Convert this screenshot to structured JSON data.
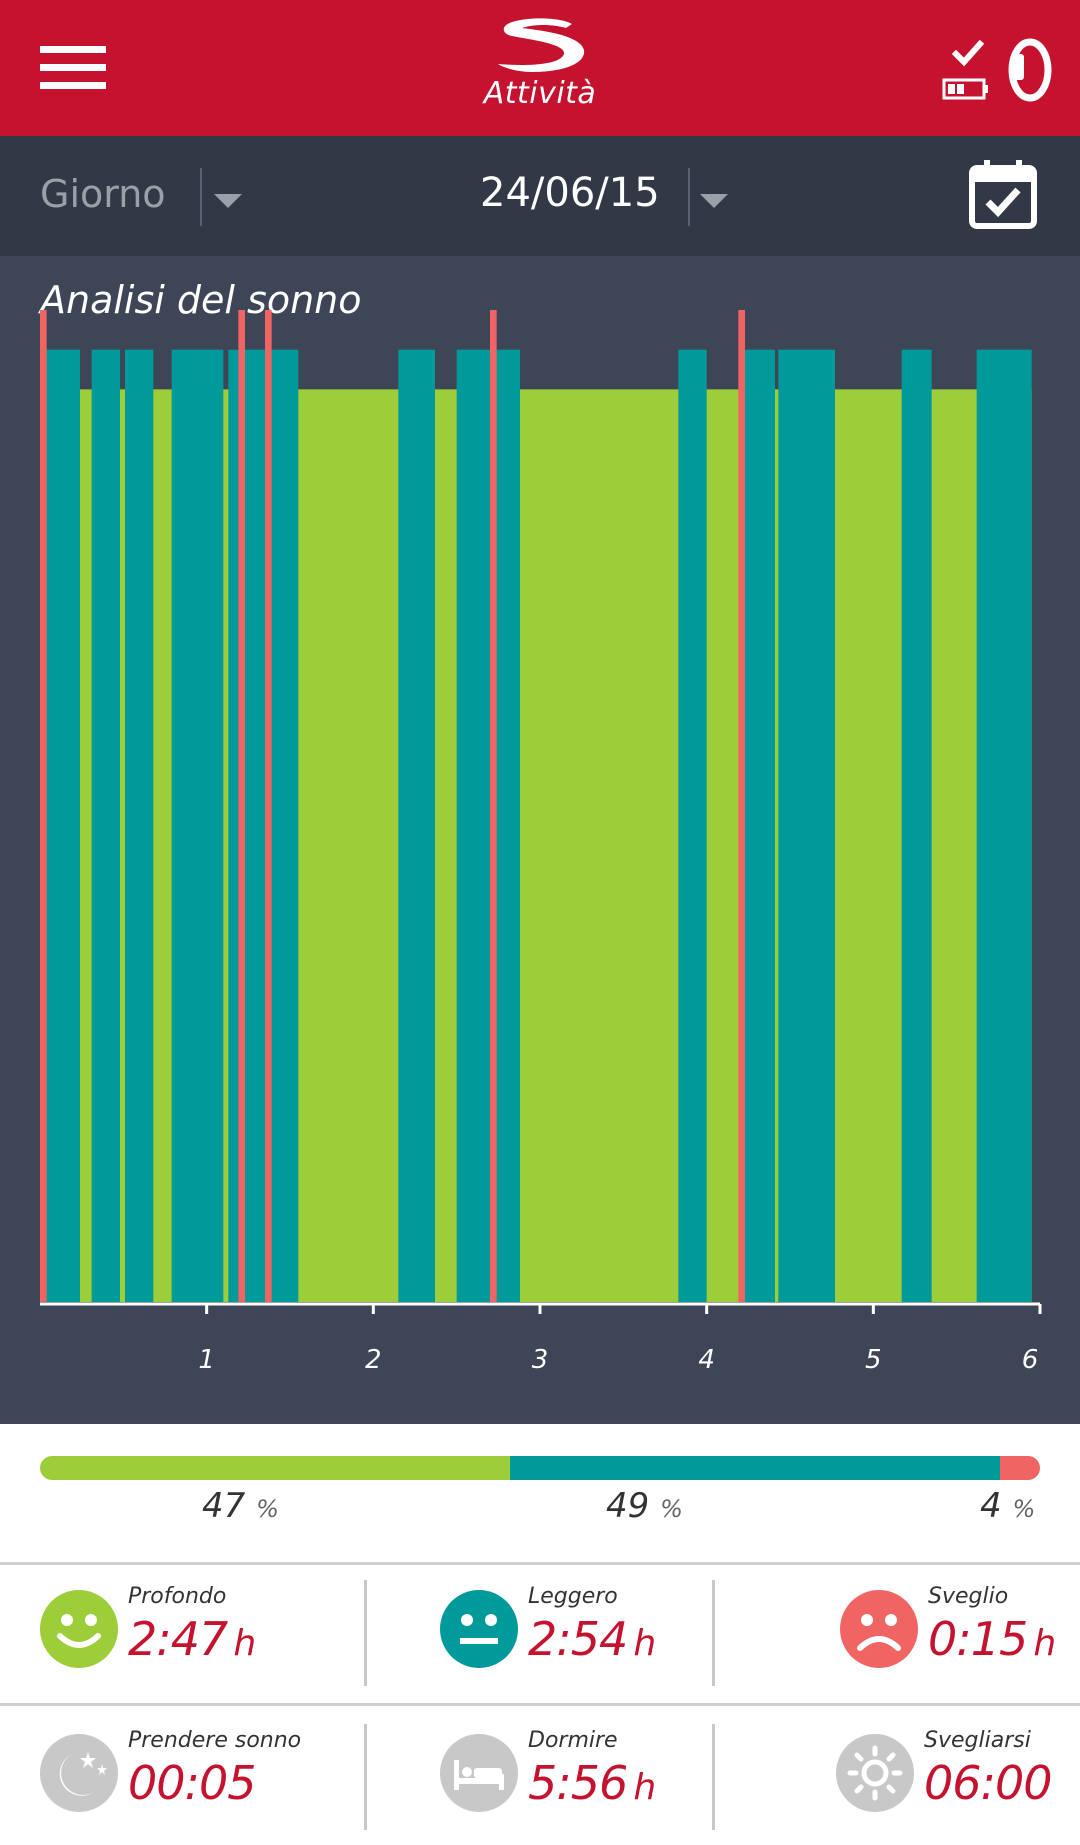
{
  "header": {
    "title": "Attività",
    "menu_icon": "hamburger-menu-icon",
    "status_icons": [
      "sync-check-icon",
      "battery-icon",
      "band-icon"
    ]
  },
  "datebar": {
    "period": "Giorno",
    "date": "24/06/15",
    "calendar_icon": "calendar-check-icon"
  },
  "chart_data": {
    "type": "bar",
    "title": "Analisi del sonno",
    "x_ticks": [
      "1",
      "2",
      "3",
      "4",
      "5",
      "6"
    ],
    "xlim": [
      0,
      6
    ],
    "levels": {
      "awake": 1.0,
      "light": 0.96,
      "deep": 0.92
    },
    "colors": {
      "deep": "#9ecd3a",
      "light": "#009a9a",
      "awake": "#f06464"
    },
    "series": [
      {
        "stage": "light",
        "start": 0.03,
        "end": 0.24
      },
      {
        "stage": "light",
        "start": 0.31,
        "end": 0.48
      },
      {
        "stage": "light",
        "start": 0.51,
        "end": 0.68
      },
      {
        "stage": "light",
        "start": 0.79,
        "end": 1.1
      },
      {
        "stage": "light",
        "start": 1.13,
        "end": 1.55
      },
      {
        "stage": "light",
        "start": 2.15,
        "end": 2.37
      },
      {
        "stage": "light",
        "start": 2.5,
        "end": 2.88
      },
      {
        "stage": "light",
        "start": 3.83,
        "end": 4.0
      },
      {
        "stage": "light",
        "start": 4.23,
        "end": 4.41
      },
      {
        "stage": "light",
        "start": 4.43,
        "end": 4.77
      },
      {
        "stage": "light",
        "start": 5.17,
        "end": 5.35
      },
      {
        "stage": "light",
        "start": 5.62,
        "end": 5.95
      },
      {
        "stage": "awake",
        "start": 0.0,
        "end": 0.04
      },
      {
        "stage": "awake",
        "start": 1.19,
        "end": 1.23
      },
      {
        "stage": "awake",
        "start": 1.35,
        "end": 1.39
      },
      {
        "stage": "awake",
        "start": 2.7,
        "end": 2.74
      },
      {
        "stage": "awake",
        "start": 4.19,
        "end": 4.23
      }
    ],
    "deep_base": {
      "start": 0.04,
      "end": 5.95
    }
  },
  "summary": {
    "segments": [
      {
        "stage": "deep",
        "percent": 47,
        "label": "47",
        "unit": "%"
      },
      {
        "stage": "light",
        "percent": 49,
        "label": "49",
        "unit": "%"
      },
      {
        "stage": "awake",
        "percent": 4,
        "label": "4",
        "unit": "%"
      }
    ]
  },
  "stats": {
    "row1": [
      {
        "icon": "happy-face-icon",
        "label": "Profondo",
        "value": "2:47",
        "unit": "h",
        "color": "#9ecd3a"
      },
      {
        "icon": "neutral-face-icon",
        "label": "Leggero",
        "value": "2:54",
        "unit": "h",
        "color": "#009a9a"
      },
      {
        "icon": "sad-face-icon",
        "label": "Sveglio",
        "value": "0:15",
        "unit": "h",
        "color": "#f06464"
      }
    ],
    "row2": [
      {
        "icon": "moon-stars-icon",
        "label": "Prendere sonno",
        "value": "00:05",
        "unit": "",
        "color": "#c8c8c8"
      },
      {
        "icon": "bed-icon",
        "label": "Dormire",
        "value": "5:56",
        "unit": "h",
        "color": "#c8c8c8"
      },
      {
        "icon": "sun-icon",
        "label": "Svegliarsi",
        "value": "06:00",
        "unit": "",
        "color": "#c8c8c8"
      }
    ]
  }
}
